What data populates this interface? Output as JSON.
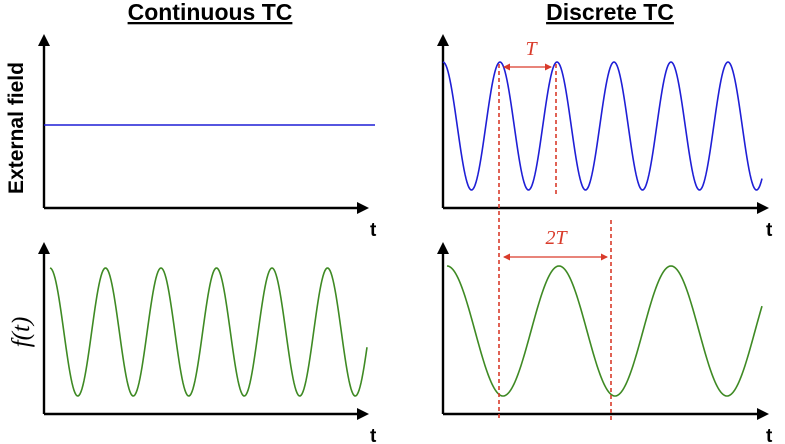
{
  "headings": {
    "left": "Continuous TC",
    "right": "Discrete TC"
  },
  "axes": {
    "time_label": "t",
    "top_row_ylabel": "External field",
    "bottom_row_ylabel": "f(t)"
  },
  "annotations": {
    "period_label": "T",
    "double_period_label": "2T"
  },
  "colors": {
    "field_wave": "#1f1fd6",
    "response_wave": "#3f8a24",
    "annotation": "#d93b2b",
    "axis": "#000000"
  },
  "panels": {
    "continuous_field": {
      "signal": "constant",
      "cycles": 0
    },
    "continuous_response": {
      "signal": "cosine",
      "cycles": 6
    },
    "discrete_field": {
      "signal": "cosine",
      "cycles": 6
    },
    "discrete_response": {
      "signal": "cosine",
      "cycles": 3,
      "period_multiple": 2
    }
  }
}
